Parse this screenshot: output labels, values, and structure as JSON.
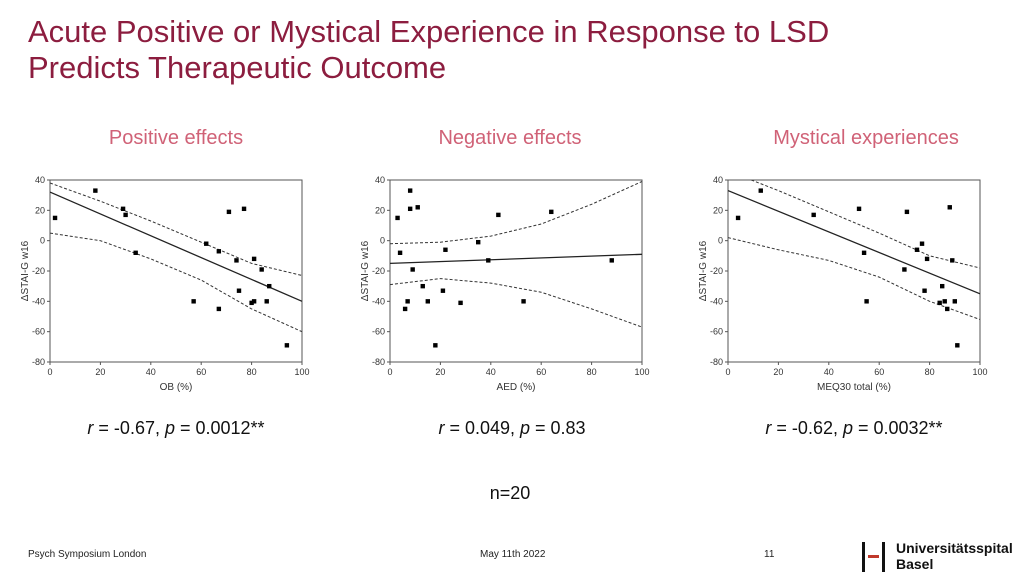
{
  "title": {
    "line1": "Acute Positive or Mystical Experience in Response to LSD",
    "line2": "Predicts Therapeutic Outcome"
  },
  "footer": {
    "left": "Psych Symposium London",
    "center": "May 11th 2022",
    "page": "11",
    "logo_line1": "Universitätsspital",
    "logo_line2": "Basel"
  },
  "n_label": "n=20",
  "colors": {
    "title": "#8c1d3f",
    "panel_title": "#d06277"
  },
  "stats": [
    {
      "r_label": "r",
      "r_value": " = -0.67, ",
      "p_label": "p",
      "p_value": " = 0.0012**"
    },
    {
      "r_label": "r",
      "r_value": " = 0.049, ",
      "p_label": "p",
      "p_value": " = 0.83"
    },
    {
      "r_label": "r",
      "r_value": " = -0.62, ",
      "p_label": "p",
      "p_value": " = 0.0032**"
    }
  ],
  "chart_data": [
    {
      "type": "scatter",
      "title": "Positive effects",
      "xlabel": "OB (%)",
      "ylabel": "ΔSTAI-G w16",
      "xlim": [
        0,
        100
      ],
      "ylim": [
        -80,
        40
      ],
      "xticks": [
        0,
        20,
        40,
        60,
        80,
        100
      ],
      "yticks": [
        40,
        20,
        0,
        -20,
        -40,
        -60,
        -80
      ],
      "points": [
        [
          2,
          15
        ],
        [
          18,
          33
        ],
        [
          29,
          21
        ],
        [
          30,
          17
        ],
        [
          34,
          -8
        ],
        [
          57,
          -40
        ],
        [
          62,
          -2
        ],
        [
          67,
          -7
        ],
        [
          67,
          -45
        ],
        [
          71,
          19
        ],
        [
          74,
          -13
        ],
        [
          75,
          -33
        ],
        [
          77,
          21
        ],
        [
          80,
          -41
        ],
        [
          81,
          -40
        ],
        [
          81,
          -12
        ],
        [
          84,
          -19
        ],
        [
          86,
          -40
        ],
        [
          87,
          -30
        ],
        [
          94,
          -69
        ]
      ],
      "regression": [
        [
          0,
          32
        ],
        [
          100,
          -40
        ]
      ],
      "ci_upper": [
        [
          0,
          38
        ],
        [
          20,
          26
        ],
        [
          40,
          13
        ],
        [
          60,
          -1
        ],
        [
          80,
          -15
        ],
        [
          100,
          -23
        ]
      ],
      "ci_lower": [
        [
          0,
          5
        ],
        [
          20,
          0
        ],
        [
          40,
          -12
        ],
        [
          60,
          -26
        ],
        [
          80,
          -45
        ],
        [
          100,
          -60
        ]
      ]
    },
    {
      "type": "scatter",
      "title": "Negative effects",
      "xlabel": "AED (%)",
      "ylabel": "ΔSTAI-G w16",
      "xlim": [
        0,
        100
      ],
      "ylim": [
        -80,
        40
      ],
      "xticks": [
        0,
        20,
        40,
        60,
        80,
        100
      ],
      "yticks": [
        40,
        20,
        0,
        -20,
        -40,
        -60,
        -80
      ],
      "points": [
        [
          3,
          15
        ],
        [
          4,
          -8
        ],
        [
          6,
          -45
        ],
        [
          7,
          -40
        ],
        [
          8,
          33
        ],
        [
          8,
          21
        ],
        [
          9,
          -19
        ],
        [
          11,
          22
        ],
        [
          13,
          -30
        ],
        [
          15,
          -40
        ],
        [
          18,
          -69
        ],
        [
          21,
          -33
        ],
        [
          22,
          -6
        ],
        [
          28,
          -41
        ],
        [
          35,
          -1
        ],
        [
          39,
          -13
        ],
        [
          43,
          17
        ],
        [
          53,
          -40
        ],
        [
          64,
          19
        ],
        [
          88,
          -13
        ]
      ],
      "regression": [
        [
          0,
          -15
        ],
        [
          100,
          -9
        ]
      ],
      "ci_upper": [
        [
          0,
          -2
        ],
        [
          20,
          -1
        ],
        [
          40,
          3
        ],
        [
          60,
          11
        ],
        [
          80,
          24
        ],
        [
          100,
          39
        ]
      ],
      "ci_lower": [
        [
          0,
          -29
        ],
        [
          20,
          -25
        ],
        [
          40,
          -28
        ],
        [
          60,
          -34
        ],
        [
          80,
          -45
        ],
        [
          100,
          -57
        ]
      ]
    },
    {
      "type": "scatter",
      "title": "Mystical experiences",
      "xlabel": "MEQ30 total (%)",
      "ylabel": "ΔSTAI-G w16",
      "xlim": [
        0,
        100
      ],
      "ylim": [
        -80,
        40
      ],
      "xticks": [
        0,
        20,
        40,
        60,
        80,
        100
      ],
      "yticks": [
        40,
        20,
        0,
        -20,
        -40,
        -60,
        -80
      ],
      "points": [
        [
          4,
          15
        ],
        [
          13,
          33
        ],
        [
          34,
          17
        ],
        [
          52,
          21
        ],
        [
          54,
          -8
        ],
        [
          55,
          -40
        ],
        [
          70,
          -19
        ],
        [
          71,
          19
        ],
        [
          75,
          -6
        ],
        [
          77,
          -2
        ],
        [
          78,
          -33
        ],
        [
          79,
          -12
        ],
        [
          84,
          -41
        ],
        [
          85,
          -30
        ],
        [
          86,
          -40
        ],
        [
          87,
          -45
        ],
        [
          88,
          22
        ],
        [
          89,
          -13
        ],
        [
          90,
          -40
        ],
        [
          91,
          -69
        ]
      ],
      "regression": [
        [
          0,
          33
        ],
        [
          100,
          -35
        ]
      ],
      "ci_upper": [
        [
          0,
          46
        ],
        [
          20,
          33
        ],
        [
          40,
          19
        ],
        [
          60,
          5
        ],
        [
          80,
          -10
        ],
        [
          100,
          -18
        ]
      ],
      "ci_lower": [
        [
          0,
          2
        ],
        [
          20,
          -6
        ],
        [
          40,
          -13
        ],
        [
          60,
          -24
        ],
        [
          80,
          -40
        ],
        [
          100,
          -52
        ]
      ]
    }
  ]
}
